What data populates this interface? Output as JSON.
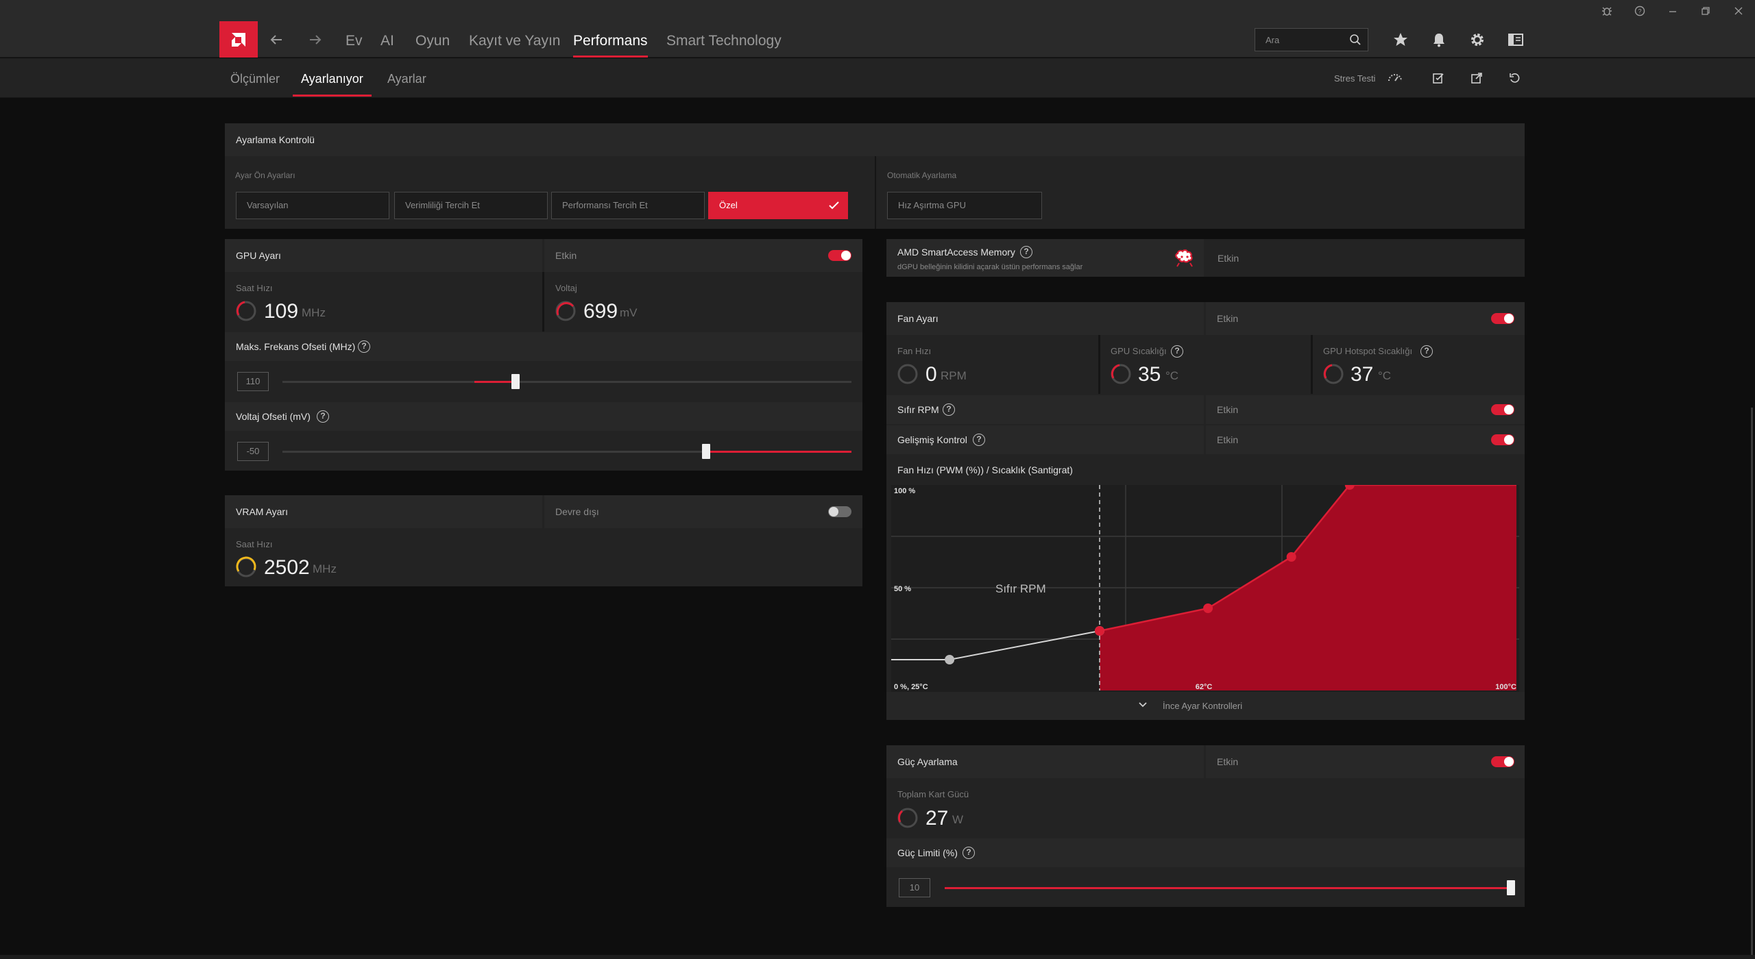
{
  "titlebar": {
    "icons": [
      "bug-icon",
      "help-icon",
      "minimize-icon",
      "restore-icon",
      "close-icon"
    ]
  },
  "nav": {
    "tabs": [
      {
        "label": "Ev"
      },
      {
        "label": "AI"
      },
      {
        "label": "Oyun"
      },
      {
        "label": "Kayıt ve Yayın"
      },
      {
        "label": "Performans"
      },
      {
        "label": "Smart Technology"
      }
    ],
    "active_tab": "Performans",
    "search_placeholder": "Ara",
    "accent": "#dc1e35"
  },
  "subnav": {
    "tabs": [
      {
        "label": "Ölçümler"
      },
      {
        "label": "Ayarlanıyor"
      },
      {
        "label": "Ayarlar"
      }
    ],
    "active_tab": "Ayarlanıyor",
    "stress_test": "Stres Testi"
  },
  "tuning_control": {
    "title": "Ayarlama Kontrolü",
    "presets_label": "Ayar Ön Ayarları",
    "presets": [
      {
        "label": "Varsayılan"
      },
      {
        "label": "Verimliliği Tercih Et"
      },
      {
        "label": "Performansı Tercih Et"
      },
      {
        "label": "Özel"
      }
    ],
    "selected_preset": "Özel",
    "auto_label": "Otomatik Ayarlama",
    "auto_value": "Hız Aşırtma GPU"
  },
  "gpu": {
    "title": "GPU Ayarı",
    "status": "Etkin",
    "enabled": true,
    "clock_label": "Saat Hızı",
    "clock_value": "109",
    "clock_unit": "MHz",
    "voltage_label": "Voltaj",
    "voltage_value": "699",
    "voltage_unit": "mV",
    "freq_offset_label": "Maks. Frekans Ofseti (MHz)",
    "freq_offset_value": "110",
    "volt_offset_label": "Voltaj Ofseti (mV)",
    "volt_offset_value": "-50"
  },
  "vram": {
    "title": "VRAM Ayarı",
    "status": "Devre dışı",
    "enabled": false,
    "clock_label": "Saat Hızı",
    "clock_value": "2502",
    "clock_unit": "MHz"
  },
  "sam": {
    "title": "AMD SmartAccess Memory",
    "desc": "dGPU belleğinin kilidini açarak üstün performans sağlar",
    "status": "Etkin"
  },
  "fan": {
    "title": "Fan Ayarı",
    "status": "Etkin",
    "speed_label": "Fan Hızı",
    "speed_value": "0",
    "speed_unit": "RPM",
    "temp_label": "GPU Sıcaklığı",
    "temp_value": "35",
    "temp_unit": "°C",
    "hotspot_label": "GPU Hotspot Sıcaklığı",
    "hotspot_value": "37",
    "hotspot_unit": "°C",
    "zero_rpm_label": "Sıfır RPM",
    "zero_rpm_status": "Etkin",
    "advanced_label": "Gelişmiş Kontrol",
    "advanced_status": "Etkin",
    "curve_title": "Fan Hızı (PWM (%)) / Sıcaklık (Santigrat)",
    "fine_tune": "İnce Ayar Kontrolleri"
  },
  "chart_data": {
    "type": "area",
    "title": "Fan Hızı (PWM (%)) / Sıcaklık (Santigrat)",
    "y_tick_labels": [
      "100 %",
      "50 %"
    ],
    "x_tick_labels": [
      "0 %, 25°C",
      "62°C",
      "100°C"
    ],
    "xlim": [
      25,
      100
    ],
    "ylim": [
      0,
      100
    ],
    "zero_rpm_label": "Sıfır RPM",
    "zero_rpm_threshold": 50,
    "points": [
      {
        "x": 32,
        "y": 15
      },
      {
        "x": 50,
        "y": 29
      },
      {
        "x": 63,
        "y": 40
      },
      {
        "x": 73,
        "y": 65
      },
      {
        "x": 80,
        "y": 100
      }
    ],
    "fill_color": "#a40a22",
    "line_color": "#d6d6d6",
    "point_active": "#dc1e35",
    "point_inactive": "#bcbcbc"
  },
  "power": {
    "title": "Güç Ayarlama",
    "status": "Etkin",
    "total_label": "Toplam Kart Gücü",
    "total_value": "27",
    "total_unit": "W",
    "limit_label": "Güç Limiti (%)",
    "limit_value": "10"
  },
  "sliders": {
    "freq_offset_fraction": 0.41,
    "volt_offset_fraction": 0.745,
    "power_limit_fraction": 1.0
  }
}
